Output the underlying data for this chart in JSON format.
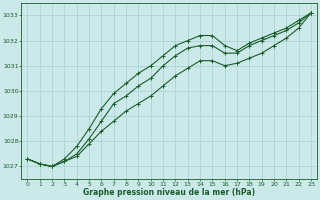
{
  "xlabel": "Graphe pression niveau de la mer (hPa)",
  "bg_color": "#cce9e9",
  "grid_color": "#aad4d4",
  "line_color": "#1a5c2a",
  "marker": "+",
  "markersize": 3.5,
  "linewidth": 0.8,
  "ylim": [
    1026.5,
    1033.5
  ],
  "xlim": [
    -0.5,
    23.5
  ],
  "yticks": [
    1027,
    1028,
    1029,
    1030,
    1031,
    1032,
    1033
  ],
  "xticks": [
    0,
    1,
    2,
    3,
    4,
    5,
    6,
    7,
    8,
    9,
    10,
    11,
    12,
    13,
    14,
    15,
    16,
    17,
    18,
    19,
    20,
    21,
    22,
    23
  ],
  "series": [
    [
      1027.3,
      1027.1,
      1027.0,
      1027.2,
      1027.4,
      1027.9,
      1028.4,
      1028.8,
      1029.2,
      1029.5,
      1029.8,
      1030.2,
      1030.6,
      1030.9,
      1031.2,
      1031.2,
      1031.0,
      1031.1,
      1031.3,
      1031.5,
      1031.8,
      1032.1,
      1032.5,
      1033.1
    ],
    [
      1027.3,
      1027.1,
      1027.0,
      1027.2,
      1027.5,
      1028.1,
      1028.8,
      1029.5,
      1029.8,
      1030.2,
      1030.5,
      1031.0,
      1031.4,
      1031.7,
      1031.8,
      1031.8,
      1031.5,
      1031.5,
      1031.8,
      1032.0,
      1032.2,
      1032.4,
      1032.7,
      1033.1
    ],
    [
      1027.3,
      1027.1,
      1027.0,
      1027.3,
      1027.8,
      1028.5,
      1029.3,
      1029.9,
      1030.3,
      1030.7,
      1031.0,
      1031.4,
      1031.8,
      1032.0,
      1032.2,
      1032.2,
      1031.8,
      1031.6,
      1031.9,
      1032.1,
      1032.3,
      1032.5,
      1032.8,
      1033.1
    ]
  ]
}
